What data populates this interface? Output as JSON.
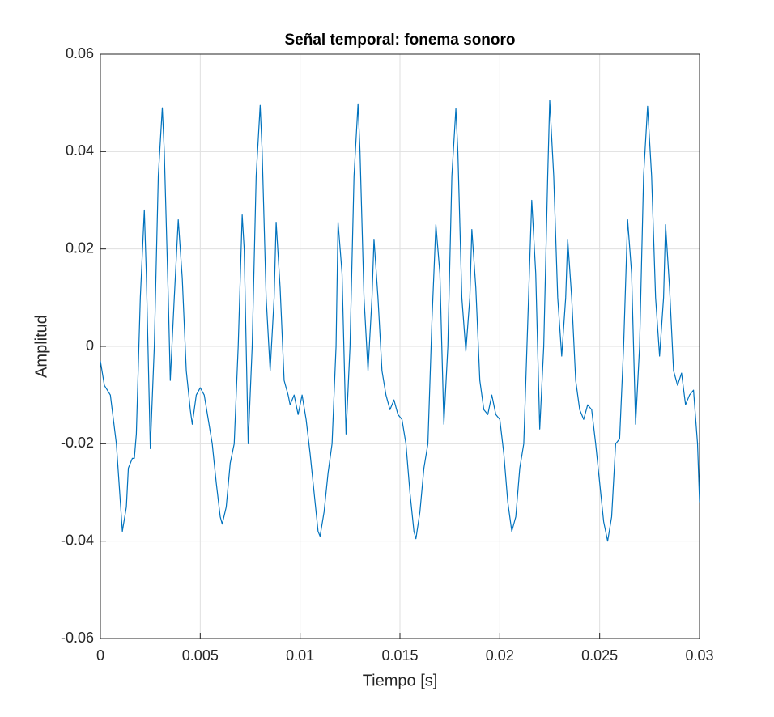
{
  "chart_data": {
    "type": "line",
    "title": "Señal temporal: fonema sonoro",
    "x_label": "Tiempo [s]",
    "y_label": "Amplitud",
    "xlim": [
      0,
      0.03
    ],
    "ylim": [
      -0.06,
      0.06
    ],
    "xticks": [
      0,
      0.005,
      0.01,
      0.015,
      0.02,
      0.025,
      0.03
    ],
    "yticks": [
      -0.06,
      -0.04,
      -0.02,
      0,
      0.02,
      0.04,
      0.06
    ],
    "grid": true,
    "x": [
      0,
      0.0002,
      0.0005,
      0.0008,
      0.001,
      0.0011,
      0.0013,
      0.0014,
      0.0016,
      0.0017,
      0.0018,
      0.002,
      0.0022,
      0.0023,
      0.0025,
      0.0027,
      0.0029,
      0.0031,
      0.0032,
      0.0034,
      0.0035,
      0.0037,
      0.0039,
      0.0041,
      0.0043,
      0.0045,
      0.0046,
      0.0048,
      0.005,
      0.0052,
      0.0054,
      0.0056,
      0.0058,
      0.006,
      0.0061,
      0.0063,
      0.0065,
      0.0067,
      0.0069,
      0.0071,
      0.0072,
      0.0074,
      0.0076,
      0.0078,
      0.008,
      0.0081,
      0.0083,
      0.0085,
      0.0087,
      0.0088,
      0.009,
      0.0092,
      0.0094,
      0.0095,
      0.0097,
      0.0099,
      0.0101,
      0.0103,
      0.0105,
      0.0107,
      0.0109,
      0.011,
      0.0112,
      0.0114,
      0.0116,
      0.0118,
      0.0119,
      0.0121,
      0.0123,
      0.0125,
      0.0127,
      0.0129,
      0.013,
      0.0132,
      0.0134,
      0.0136,
      0.0137,
      0.0139,
      0.0141,
      0.0143,
      0.0145,
      0.0147,
      0.0149,
      0.0151,
      0.0153,
      0.0155,
      0.0157,
      0.0158,
      0.016,
      0.0162,
      0.0164,
      0.0166,
      0.0168,
      0.017,
      0.0172,
      0.0174,
      0.0176,
      0.0178,
      0.0179,
      0.0181,
      0.0183,
      0.0185,
      0.0186,
      0.0188,
      0.019,
      0.0192,
      0.0194,
      0.0196,
      0.0198,
      0.02,
      0.0202,
      0.0204,
      0.0206,
      0.0208,
      0.021,
      0.0212,
      0.0214,
      0.0216,
      0.0218,
      0.022,
      0.0222,
      0.0224,
      0.0225,
      0.0227,
      0.0229,
      0.0231,
      0.0233,
      0.0234,
      0.0236,
      0.0238,
      0.024,
      0.0242,
      0.0244,
      0.0246,
      0.0248,
      0.025,
      0.0252,
      0.0254,
      0.0256,
      0.0258,
      0.026,
      0.0262,
      0.0264,
      0.0266,
      0.0268,
      0.027,
      0.0272,
      0.0274,
      0.0276,
      0.0278,
      0.028,
      0.0282,
      0.0283,
      0.0285,
      0.0287,
      0.0289,
      0.0291,
      0.0293,
      0.0295,
      0.0297,
      0.0299,
      0.03
    ],
    "series": [
      {
        "name": "Amplitud",
        "color": "#0072bd",
        "values": [
          -0.003,
          -0.008,
          -0.01,
          -0.02,
          -0.032,
          -0.038,
          -0.033,
          -0.025,
          -0.023,
          -0.023,
          -0.018,
          0.01,
          0.028,
          0.015,
          -0.021,
          0,
          0.035,
          0.049,
          0.04,
          0.01,
          -0.007,
          0.01,
          0.026,
          0.014,
          -0.005,
          -0.013,
          -0.016,
          -0.01,
          -0.0085,
          -0.01,
          -0.015,
          -0.02,
          -0.028,
          -0.035,
          -0.0365,
          -0.033,
          -0.024,
          -0.02,
          0,
          0.027,
          0.02,
          -0.02,
          0,
          0.035,
          0.0495,
          0.04,
          0.01,
          -0.005,
          0.01,
          0.0255,
          0.012,
          -0.007,
          -0.01,
          -0.012,
          -0.01,
          -0.014,
          -0.01,
          -0.015,
          -0.022,
          -0.03,
          -0.038,
          -0.039,
          -0.034,
          -0.026,
          -0.02,
          0,
          0.0255,
          0.015,
          -0.018,
          0,
          0.035,
          0.0498,
          0.04,
          0.01,
          -0.005,
          0.01,
          0.022,
          0.01,
          -0.005,
          -0.01,
          -0.013,
          -0.011,
          -0.014,
          -0.015,
          -0.02,
          -0.03,
          -0.038,
          -0.0395,
          -0.034,
          -0.025,
          -0.02,
          0.005,
          0.025,
          0.015,
          -0.016,
          0,
          0.035,
          0.0488,
          0.04,
          0.01,
          -0.001,
          0.01,
          0.024,
          0.012,
          -0.007,
          -0.013,
          -0.014,
          -0.01,
          -0.014,
          -0.015,
          -0.022,
          -0.032,
          -0.038,
          -0.035,
          -0.025,
          -0.02,
          0.005,
          0.03,
          0.015,
          -0.017,
          0,
          0.035,
          0.0505,
          0.035,
          0.01,
          -0.002,
          0.01,
          0.022,
          0.01,
          -0.007,
          -0.013,
          -0.015,
          -0.012,
          -0.013,
          -0.02,
          -0.028,
          -0.036,
          -0.04,
          -0.035,
          -0.02,
          -0.019,
          0,
          0.026,
          0.015,
          -0.016,
          0,
          0.035,
          0.0493,
          0.035,
          0.01,
          -0.002,
          0.01,
          0.025,
          0.012,
          -0.005,
          -0.008,
          -0.0055,
          -0.012,
          -0.01,
          -0.009,
          -0.02,
          -0.032
        ]
      }
    ]
  }
}
